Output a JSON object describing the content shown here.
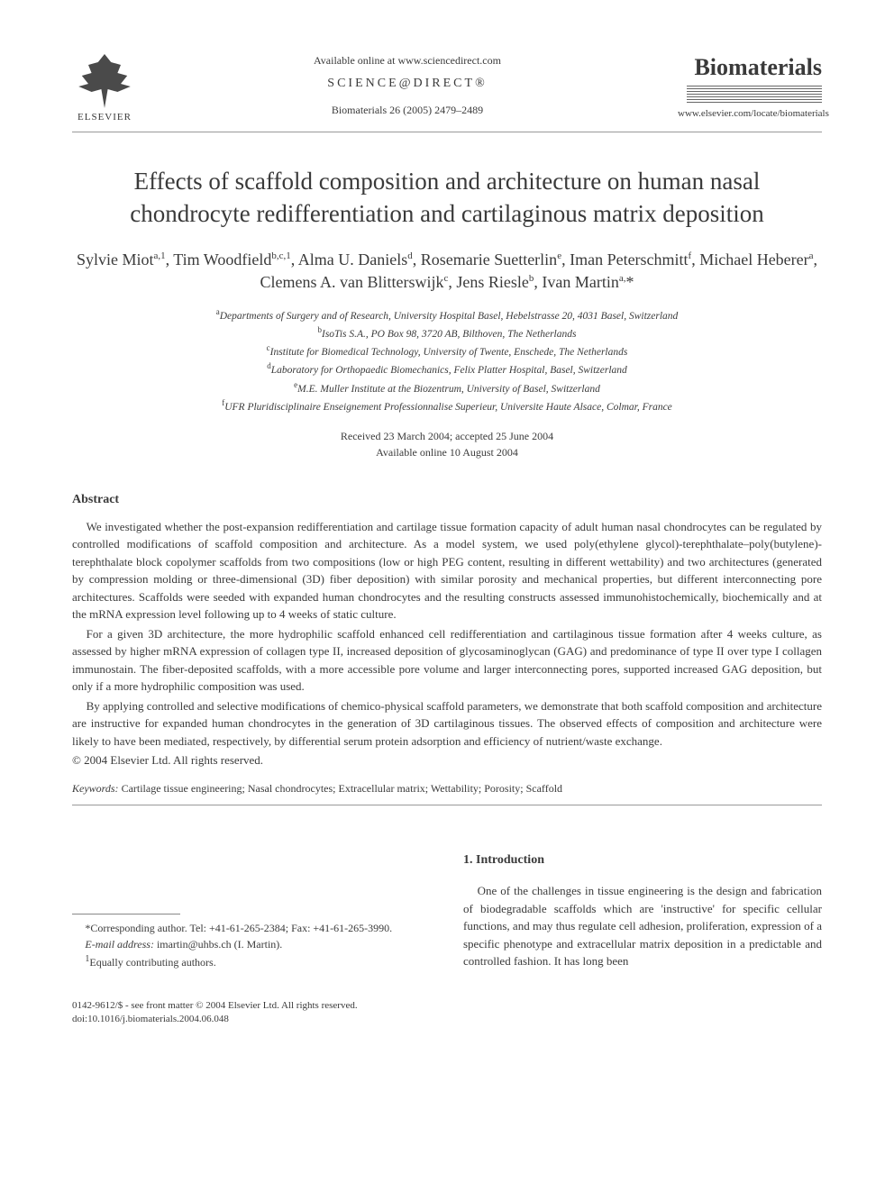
{
  "header": {
    "publisher_logo_text": "ELSEVIER",
    "available_text": "Available online at www.sciencedirect.com",
    "sciencedirect_prefix": "SCIENCE",
    "sciencedirect_at": "@",
    "sciencedirect_suffix": "DIRECT®",
    "journal_ref": "Biomaterials 26 (2005) 2479–2489",
    "journal_brand": "Biomaterials",
    "journal_url": "www.elsevier.com/locate/biomaterials"
  },
  "title": "Effects of scaffold composition and architecture on human nasal chondrocyte redifferentiation and cartilaginous matrix deposition",
  "authors_html": "Sylvie Miot<sup>a,1</sup>, Tim Woodfield<sup>b,c,1</sup>, Alma U. Daniels<sup>d</sup>, Rosemarie Suetterlin<sup>e</sup>, Iman Peterschmitt<sup>f</sup>, Michael Heberer<sup>a</sup>, Clemens A. van Blitterswijk<sup>c</sup>, Jens Riesle<sup>b</sup>, Ivan Martin<sup>a,</sup>*",
  "affiliations": [
    {
      "sup": "a",
      "text": "Departments of Surgery and of Research, University Hospital Basel, Hebelstrasse 20, 4031 Basel, Switzerland"
    },
    {
      "sup": "b",
      "text": "IsoTis S.A., PO Box 98, 3720 AB, Bilthoven, The Netherlands"
    },
    {
      "sup": "c",
      "text": "Institute for Biomedical Technology, University of Twente, Enschede, The Netherlands"
    },
    {
      "sup": "d",
      "text": "Laboratory for Orthopaedic Biomechanics, Felix Platter Hospital, Basel, Switzerland"
    },
    {
      "sup": "e",
      "text": "M.E. Muller Institute at the Biozentrum, University of Basel, Switzerland"
    },
    {
      "sup": "f",
      "text": "UFR Pluridisciplinaire Enseignement Professionnalise Superieur, Universite Haute Alsace, Colmar, France"
    }
  ],
  "dates": {
    "received_accepted": "Received 23 March 2004; accepted 25 June 2004",
    "available_online": "Available online 10 August 2004"
  },
  "abstract": {
    "heading": "Abstract",
    "paragraphs": [
      "We investigated whether the post-expansion redifferentiation and cartilage tissue formation capacity of adult human nasal chondrocytes can be regulated by controlled modifications of scaffold composition and architecture. As a model system, we used poly(ethylene glycol)-terephthalate–poly(butylene)-terephthalate block copolymer scaffolds from two compositions (low or high PEG content, resulting in different wettability) and two architectures (generated by compression molding or three-dimensional (3D) fiber deposition) with similar porosity and mechanical properties, but different interconnecting pore architectures. Scaffolds were seeded with expanded human chondrocytes and the resulting constructs assessed immunohistochemically, biochemically and at the mRNA expression level following up to 4 weeks of static culture.",
      "For a given 3D architecture, the more hydrophilic scaffold enhanced cell redifferentiation and cartilaginous tissue formation after 4 weeks culture, as assessed by higher mRNA expression of collagen type II, increased deposition of glycosaminoglycan (GAG) and predominance of type II over type I collagen immunostain. The fiber-deposited scaffolds, with a more accessible pore volume and larger interconnecting pores, supported increased GAG deposition, but only if a more hydrophilic composition was used.",
      "By applying controlled and selective modifications of chemico-physical scaffold parameters, we demonstrate that both scaffold composition and architecture are instructive for expanded human chondrocytes in the generation of 3D cartilaginous tissues. The observed effects of composition and architecture were likely to have been mediated, respectively, by differential serum protein adsorption and efficiency of nutrient/waste exchange."
    ],
    "copyright": "© 2004 Elsevier Ltd. All rights reserved."
  },
  "keywords": {
    "label": "Keywords:",
    "text": "Cartilage tissue engineering; Nasal chondrocytes; Extracellular matrix; Wettability; Porosity; Scaffold"
  },
  "footnotes": {
    "corresponding": "*Corresponding author. Tel: +41-61-265-2384; Fax: +41-61-265-3990.",
    "email_label": "E-mail address:",
    "email": "imartin@uhbs.ch (I. Martin).",
    "equal": "Equally contributing authors.",
    "equal_sup": "1"
  },
  "introduction": {
    "heading": "1. Introduction",
    "text": "One of the challenges in tissue engineering is the design and fabrication of biodegradable scaffolds which are 'instructive' for specific cellular functions, and may thus regulate cell adhesion, proliferation, expression of a specific phenotype and extracellular matrix deposition in a predictable and controlled fashion. It has long been"
  },
  "footer": {
    "line1": "0142-9612/$ - see front matter © 2004 Elsevier Ltd. All rights reserved.",
    "line2": "doi:10.1016/j.biomaterials.2004.06.048"
  }
}
